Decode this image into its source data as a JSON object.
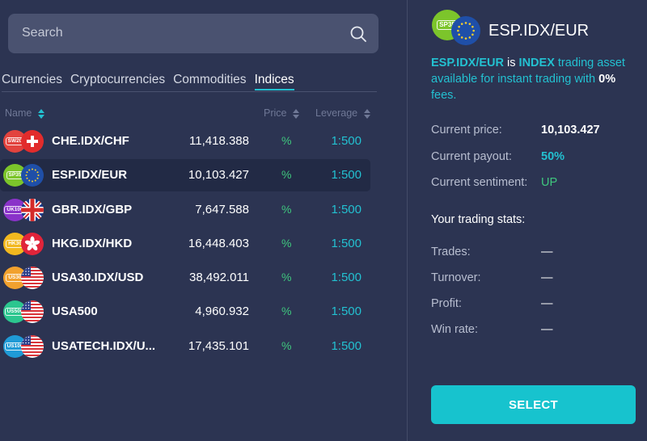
{
  "search": {
    "placeholder": "Search"
  },
  "tabs": [
    {
      "label": "Currencies",
      "active": false
    },
    {
      "label": "Cryptocurrencies",
      "active": false
    },
    {
      "label": "Commodities",
      "active": false
    },
    {
      "label": "Indices",
      "active": true
    }
  ],
  "columns": {
    "name": "Name",
    "price": "Price",
    "leverage": "Leverage"
  },
  "rows": [
    {
      "name": "CHE.IDX/CHF",
      "price": "11,418.388",
      "payout": "%",
      "leverage": "1:500",
      "badge": "SW20",
      "badge_color": "#e2433e",
      "flag": "switzerland"
    },
    {
      "name": "ESP.IDX/EUR",
      "price": "10,103.427",
      "payout": "%",
      "leverage": "1:500",
      "badge": "SP35",
      "badge_color": "#7cc52b",
      "flag": "eu",
      "selected": true
    },
    {
      "name": "GBR.IDX/GBP",
      "price": "7,647.588",
      "payout": "%",
      "leverage": "1:500",
      "badge": "UK100",
      "badge_color": "#8a33c9",
      "flag": "uk"
    },
    {
      "name": "HKG.IDX/HKD",
      "price": "16,448.403",
      "payout": "%",
      "leverage": "1:500",
      "badge": "HK30",
      "badge_color": "#f2b81f",
      "flag": "hongkong"
    },
    {
      "name": "USA30.IDX/USD",
      "price": "38,492.011",
      "payout": "%",
      "leverage": "1:500",
      "badge": "US30",
      "badge_color": "#f2a12e",
      "flag": "us"
    },
    {
      "name": "USA500",
      "price": "4,960.932",
      "payout": "%",
      "leverage": "1:500",
      "badge": "US500",
      "badge_color": "#2cc68f",
      "flag": "us"
    },
    {
      "name": "USATECH.IDX/U...",
      "price": "17,435.101",
      "payout": "%",
      "leverage": "1:500",
      "badge": "US100",
      "badge_color": "#1f9ad6",
      "flag": "us"
    }
  ],
  "detail": {
    "title": "ESP.IDX/EUR",
    "badge": "SP35",
    "desc_asset": "ESP.IDX/EUR",
    "desc_is": "is",
    "desc_type": "INDEX",
    "desc_mid": "trading asset available for instant trading with",
    "desc_fee": "0%",
    "desc_end": "fees.",
    "current_price_label": "Current price:",
    "current_price": "10,103.427",
    "current_payout_label": "Current payout:",
    "current_payout": "50%",
    "current_sentiment_label": "Current sentiment:",
    "current_sentiment": "UP",
    "stats_title": "Your trading stats:",
    "trades_label": "Trades:",
    "trades": "—",
    "turnover_label": "Turnover:",
    "turnover": "—",
    "profit_label": "Profit:",
    "profit": "—",
    "winrate_label": "Win rate:",
    "winrate": "—"
  },
  "select_button": "SELECT",
  "colors": {
    "accent": "#23c1d1",
    "positive": "#3fc77e",
    "background": "#2c3452"
  }
}
